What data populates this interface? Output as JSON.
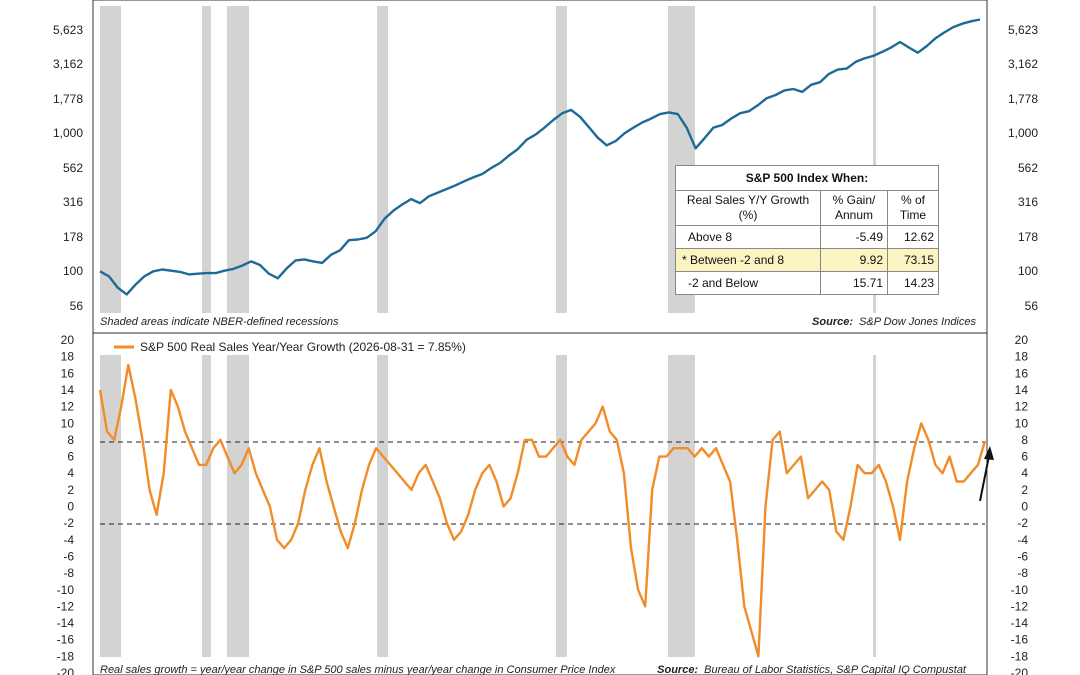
{
  "top_panel": {
    "left_ticks": [
      "5,623",
      "3,162",
      "1,778",
      "1,000",
      "562",
      "316",
      "178",
      "100",
      "56"
    ],
    "right_ticks": [
      "5,623",
      "3,162",
      "1,778",
      "1,000",
      "562",
      "316",
      "178",
      "100",
      "56"
    ],
    "note_left": "Shaded areas indicate NBER-defined recessions",
    "source_label": "Source:",
    "source_text": "S&P Dow Jones Indices",
    "color": "#1d6a96"
  },
  "table": {
    "title": "S&P 500 Index When:",
    "header": [
      "Real Sales Y/Y Growth (%)",
      "% Gain/ Annum",
      "% of Time"
    ],
    "rows": [
      {
        "label": "Above 8",
        "gain": "-5.49",
        "time": "12.62"
      },
      {
        "label": "* Between -2 and 8",
        "gain": "9.92",
        "time": "73.15"
      },
      {
        "label": "-2 and Below",
        "gain": "15.71",
        "time": "14.23"
      }
    ]
  },
  "bottom_panel": {
    "legend": "S&P 500 Real Sales Year/Year Growth (2026-08-31 = 7.85%)",
    "left_ticks": [
      "20",
      "18",
      "16",
      "14",
      "12",
      "10",
      "8",
      "6",
      "4",
      "2",
      "0",
      "-2",
      "-4",
      "-6",
      "-8",
      "-10",
      "-12",
      "-14",
      "-16",
      "-18",
      "-20"
    ],
    "right_ticks": [
      "20",
      "18",
      "16",
      "14",
      "12",
      "10",
      "8",
      "6",
      "4",
      "2",
      "0",
      "-2",
      "-4",
      "-6",
      "-8",
      "-10",
      "-12",
      "-14",
      "-16",
      "-18",
      "-20"
    ],
    "note_left": "Real sales growth = year/year change in S&P 500 sales minus year/year change in Consumer Price Index",
    "source_label": "Source:",
    "source_text": "Bureau of Labor Statistics, S&P Capital IQ Compustat",
    "color": "#f28c28"
  },
  "chart_data": [
    {
      "type": "line",
      "scale": "log",
      "ylim": [
        56,
        5623
      ],
      "series": [
        {
          "values": [
            100,
            92,
            76,
            68,
            80,
            92,
            100,
            103,
            101,
            99,
            95,
            96,
            97,
            97,
            101,
            104,
            110,
            118,
            111,
            96,
            89,
            105,
            120,
            122,
            118,
            115,
            132,
            142,
            168,
            170,
            175,
            195,
            240,
            275,
            305,
            334,
            312,
            350,
            372,
            395,
            420,
            450,
            480,
            508,
            560,
            610,
            690,
            770,
            900,
            980,
            1100,
            1250,
            1400,
            1480,
            1320,
            1110,
            930,
            820,
            880,
            1000,
            1100,
            1200,
            1280,
            1380,
            1420,
            1380,
            1100,
            780,
            920,
            1100,
            1150,
            1280,
            1400,
            1450,
            1600,
            1800,
            1900,
            2050,
            2100,
            2000,
            2250,
            2350,
            2700,
            2900,
            2950,
            3300,
            3500,
            3650,
            3900,
            4200,
            4600,
            4200,
            3850,
            4300,
            4900,
            5400,
            5900,
            6250,
            6500,
            6700
          ]
        }
      ],
      "x_range": [
        0,
        100
      ]
    },
    {
      "type": "line",
      "ylim": [
        -20,
        20
      ],
      "reference_lines": [
        8,
        -2
      ],
      "series": [
        {
          "name": "S&P 500 Real Sales Year/Year Growth (2026-08-31 = 7.85%)",
          "values": [
            14,
            9,
            8,
            12,
            17,
            13,
            8,
            2,
            -1,
            4,
            14,
            12,
            9,
            7,
            5,
            5,
            7,
            8,
            6,
            4,
            5,
            7,
            4,
            2,
            0,
            -4,
            -5,
            -4,
            -2,
            2,
            5,
            7,
            3,
            0,
            -3,
            -5,
            -2,
            2,
            5,
            7,
            6,
            5,
            4,
            3,
            2,
            4,
            5,
            3,
            1,
            -2,
            -4,
            -3,
            -1,
            2,
            4,
            5,
            3,
            0,
            1,
            4,
            8,
            8,
            6,
            6,
            7,
            8,
            6,
            5,
            8,
            9,
            10,
            12,
            9,
            8,
            4,
            -5,
            -10,
            -12,
            2,
            6,
            6,
            7,
            7,
            7,
            6,
            7,
            6,
            7,
            5,
            3,
            -4,
            -12,
            -15,
            -18,
            0,
            8,
            9,
            4,
            5,
            6,
            1,
            2,
            3,
            2,
            -3,
            -4,
            0,
            5,
            4,
            4,
            5,
            3,
            0,
            -4,
            3,
            7,
            10,
            8,
            5,
            4,
            6,
            3,
            3,
            4,
            5,
            7.85
          ]
        }
      ],
      "x_range": [
        0,
        100
      ]
    }
  ]
}
